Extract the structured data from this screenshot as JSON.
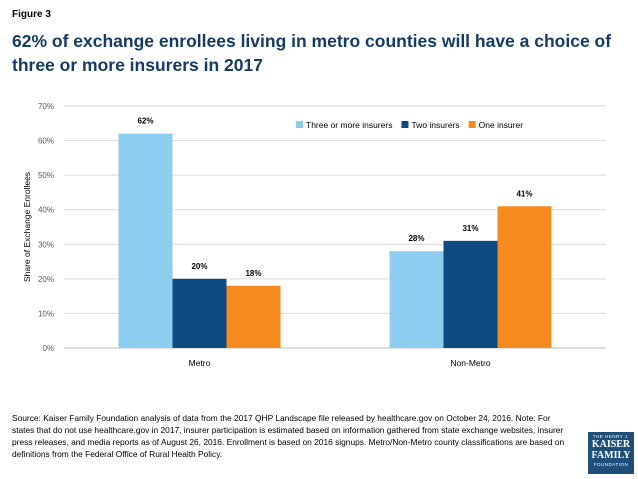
{
  "figure_label": "Figure 3",
  "headline": "62% of exchange enrollees living in metro counties will have a choice of three or more insurers in 2017",
  "source_note": "Source: Kaiser Family Foundation analysis of data from  the 2017 QHP Landscape file released by healthcare.gov on October 24, 2016. Note: For states that do not use healthcare.gov in 2017, insurer participation is estimated based on  information gathered from state exchange websites, insurer press releases, and media reports as of August 26, 2016. Enrollment is based on 2016 signups. Metro/Non-Metro county classifications are based on definitions from the Federal Office of Rural Health Policy.",
  "logo": {
    "line1": "THE HENRY J.",
    "line2": "KAISER",
    "line3": "FAMILY",
    "line4": "FOUNDATION"
  },
  "chart_data": {
    "type": "bar",
    "title": "62% of exchange enrollees living in metro counties will have a choice of three or more insurers in 2017",
    "xlabel": "",
    "ylabel": "Share of Exchange Enrollees",
    "categories": [
      "Metro",
      "Non-Metro"
    ],
    "series": [
      {
        "name": "Three or more insurers",
        "values": [
          62,
          28
        ],
        "labels": [
          "62%",
          "28%"
        ],
        "color": "#8dcdf0"
      },
      {
        "name": "Two insurers",
        "values": [
          20,
          31
        ],
        "labels": [
          "20%",
          "31%"
        ],
        "color": "#0d4a80"
      },
      {
        "name": "One insurer",
        "values": [
          18,
          41
        ],
        "labels": [
          "18%",
          "41%"
        ],
        "color": "#f58b1f"
      }
    ],
    "ylim": [
      0,
      70
    ],
    "yticks": [
      0,
      10,
      20,
      30,
      40,
      50,
      60,
      70
    ],
    "ytick_labels": [
      "0%",
      "10%",
      "20%",
      "30%",
      "40%",
      "50%",
      "60%",
      "70%"
    ],
    "grid": true,
    "legend_position": "top-right"
  }
}
